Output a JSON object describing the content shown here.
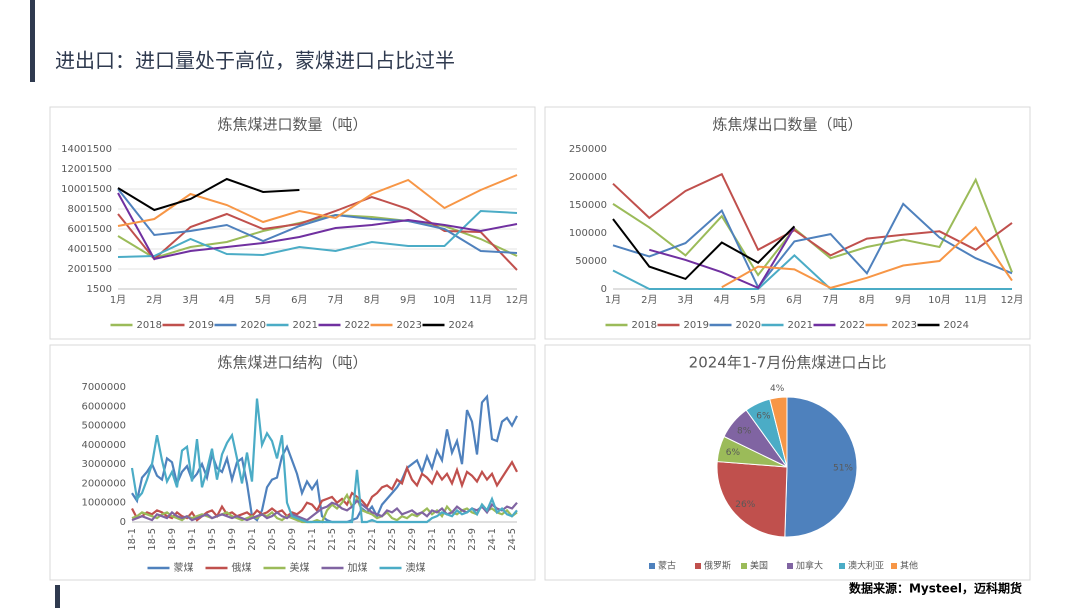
{
  "header": {
    "title": "进出口：进口量处于高位，蒙煤进口占比过半"
  },
  "source": "数据来源：Mysteel，迈科期货",
  "chart_data": [
    {
      "type": "line",
      "title": "炼焦煤进口数量（吨）",
      "grid": true,
      "categories": [
        "1月",
        "2月",
        "3月",
        "4月",
        "5月",
        "6月",
        "7月",
        "8月",
        "9月",
        "10月",
        "11月",
        "12月"
      ],
      "ylim": [
        1500,
        14001500
      ],
      "yticks": [
        1500,
        2001500,
        4001500,
        6001500,
        8001500,
        10001500,
        12001500,
        14001500
      ],
      "series": [
        {
          "name": "2018",
          "color": "#9bbb59",
          "values": [
            5300000,
            3100000,
            4200000,
            4700000,
            5800000,
            6600000,
            7400000,
            7200000,
            6800000,
            6300000,
            5000000,
            3300000
          ]
        },
        {
          "name": "2019",
          "color": "#c0504d",
          "values": [
            7500000,
            3000000,
            6200000,
            7500000,
            6000000,
            6500000,
            7800000,
            9200000,
            8000000,
            5800000,
            5700000,
            1900000
          ]
        },
        {
          "name": "2020",
          "color": "#4f81bd",
          "values": [
            10000000,
            5400000,
            5800000,
            6400000,
            4800000,
            6300000,
            7400000,
            7000000,
            6800000,
            6000000,
            3800000,
            3600000
          ]
        },
        {
          "name": "2021",
          "color": "#4bacc6",
          "values": [
            3200000,
            3300000,
            5000000,
            3500000,
            3400000,
            4200000,
            3800000,
            4700000,
            4300000,
            4300000,
            7800000,
            7600000
          ]
        },
        {
          "name": "2022",
          "color": "#7030a0",
          "values": [
            9600000,
            3000000,
            3800000,
            4200000,
            4600000,
            5200000,
            6100000,
            6400000,
            6900000,
            6400000,
            5800000,
            6500000
          ]
        },
        {
          "name": "2023",
          "color": "#f79646",
          "values": [
            6300000,
            7000000,
            9500000,
            8400000,
            6700000,
            7800000,
            7100000,
            9500000,
            10900000,
            8100000,
            9900000,
            11400000
          ]
        },
        {
          "name": "2024",
          "color": "#000000",
          "values": [
            10100000,
            7900000,
            9000000,
            11000000,
            9700000,
            9900000,
            null,
            null,
            null,
            null,
            null,
            null
          ]
        }
      ]
    },
    {
      "type": "line",
      "title": "炼焦煤出口数量（吨）",
      "grid": false,
      "categories": [
        "1月",
        "2月",
        "3月",
        "4月",
        "5月",
        "6月",
        "7月",
        "8月",
        "9月",
        "10月",
        "11月",
        "12月"
      ],
      "ylim": [
        0,
        250000
      ],
      "yticks": [
        0,
        50000,
        100000,
        150000,
        200000,
        250000
      ],
      "series": [
        {
          "name": "2018",
          "color": "#9bbb59",
          "values": [
            152000,
            110000,
            60000,
            130000,
            25000,
            108000,
            55000,
            75000,
            88000,
            75000,
            195000,
            30000
          ]
        },
        {
          "name": "2019",
          "color": "#c0504d",
          "values": [
            188000,
            127000,
            175000,
            205000,
            70000,
            105000,
            60000,
            90000,
            97000,
            103000,
            70000,
            118000
          ]
        },
        {
          "name": "2020",
          "color": "#4f81bd",
          "values": [
            78000,
            58000,
            82000,
            140000,
            3000,
            85000,
            98000,
            28000,
            152000,
            92000,
            55000,
            28000
          ]
        },
        {
          "name": "2021",
          "color": "#4bacc6",
          "values": [
            33000,
            0,
            0,
            0,
            0,
            60000,
            0,
            0,
            0,
            0,
            0,
            0
          ]
        },
        {
          "name": "2022",
          "color": "#7030a0",
          "values": [
            null,
            70000,
            52000,
            30000,
            2000,
            110000,
            null,
            null,
            null,
            null,
            null,
            null
          ]
        },
        {
          "name": "2023",
          "color": "#f79646",
          "values": [
            null,
            null,
            null,
            3000,
            40000,
            35000,
            2000,
            20000,
            42000,
            50000,
            110000,
            15000
          ]
        },
        {
          "name": "2024",
          "color": "#000000",
          "values": [
            125000,
            40000,
            18000,
            83000,
            47000,
            112000,
            null,
            null,
            null,
            null,
            null,
            null
          ]
        }
      ]
    },
    {
      "type": "line",
      "title": "炼焦煤进口结构（吨）",
      "grid": false,
      "rotate_labels": true,
      "categories": [
        "18-1",
        null,
        null,
        null,
        "18-5",
        null,
        null,
        null,
        "18-9",
        null,
        null,
        null,
        "19-1",
        null,
        null,
        null,
        "19-5",
        null,
        null,
        null,
        "19-9",
        null,
        null,
        null,
        "20-1",
        null,
        null,
        null,
        "20-5",
        null,
        null,
        null,
        "20-9",
        null,
        null,
        null,
        "21-1",
        null,
        null,
        null,
        "21-5",
        null,
        null,
        null,
        "21-9",
        null,
        null,
        null,
        "22-1",
        null,
        null,
        null,
        "22-5",
        null,
        null,
        null,
        "22-9",
        null,
        null,
        null,
        "23-1",
        null,
        null,
        null,
        "23-5",
        null,
        null,
        null,
        "23-9",
        null,
        null,
        null,
        "24-1",
        null,
        null,
        null,
        "24-5",
        null
      ],
      "ylim": [
        0,
        7000000
      ],
      "yticks": [
        0,
        1000000,
        2000000,
        3000000,
        4000000,
        5000000,
        6000000,
        7000000
      ],
      "series": [
        {
          "name": "蒙煤",
          "color": "#4f81bd",
          "values": [
            1500000,
            1100000,
            2300000,
            2600000,
            3000000,
            2400000,
            2200000,
            3300000,
            3100000,
            2000000,
            2600000,
            2900000,
            2200000,
            2500000,
            3000000,
            2300000,
            3500000,
            2800000,
            2600000,
            3300000,
            2200000,
            3100000,
            3300000,
            2000000,
            300000,
            100000,
            600000,
            1800000,
            2200000,
            2300000,
            3400000,
            3900000,
            3200000,
            2500000,
            1500000,
            2100000,
            1700000,
            2100000,
            300000,
            100000,
            0,
            0,
            0,
            0,
            100000,
            200000,
            700000,
            500000,
            800000,
            300000,
            900000,
            1200000,
            1500000,
            1800000,
            2200000,
            2800000,
            3000000,
            3200000,
            2600000,
            3400000,
            2800000,
            3700000,
            3200000,
            4800000,
            3600000,
            4200000,
            3000000,
            5800000,
            5200000,
            3500000,
            6200000,
            6500000,
            4300000,
            4200000,
            5200000,
            5400000,
            5000000,
            5500000
          ]
        },
        {
          "name": "俄煤",
          "color": "#c0504d",
          "values": [
            700000,
            200000,
            300000,
            500000,
            400000,
            600000,
            500000,
            300000,
            200000,
            500000,
            300000,
            200000,
            500000,
            100000,
            300000,
            500000,
            600000,
            300000,
            800000,
            400000,
            500000,
            300000,
            400000,
            500000,
            300000,
            600000,
            400000,
            500000,
            700000,
            500000,
            600000,
            300000,
            500000,
            400000,
            600000,
            1000000,
            900000,
            600000,
            1100000,
            1200000,
            1300000,
            1000000,
            1200000,
            900000,
            1500000,
            1300000,
            1100000,
            800000,
            1300000,
            1500000,
            1800000,
            1900000,
            1700000,
            2200000,
            2000000,
            2800000,
            2200000,
            1900000,
            2500000,
            2300000,
            2000000,
            2600000,
            2200000,
            2500000,
            2000000,
            2700000,
            1900000,
            2600000,
            2400000,
            2100000,
            2600000,
            2200000,
            2500000,
            1900000,
            2300000,
            2700000,
            3100000,
            2600000
          ]
        },
        {
          "name": "美煤",
          "color": "#9bbb59",
          "values": [
            200000,
            300000,
            500000,
            400000,
            300000,
            200000,
            400000,
            500000,
            300000,
            200000,
            100000,
            300000,
            200000,
            300000,
            400000,
            300000,
            200000,
            300000,
            400000,
            500000,
            300000,
            200000,
            100000,
            200000,
            300000,
            200000,
            400000,
            300000,
            500000,
            200000,
            100000,
            300000,
            200000,
            100000,
            0,
            0,
            0,
            100000,
            0,
            600000,
            900000,
            700000,
            1000000,
            1400000,
            800000,
            1200000,
            600000,
            500000,
            400000,
            200000,
            300000,
            500000,
            200000,
            100000,
            300000,
            200000,
            400000,
            300000,
            500000,
            700000,
            400000,
            600000,
            300000,
            800000,
            500000,
            400000,
            600000,
            700000,
            500000,
            400000,
            900000,
            600000,
            700000,
            500000,
            400000,
            600000,
            300000,
            500000
          ]
        },
        {
          "name": "加煤",
          "color": "#8064a2",
          "values": [
            100000,
            200000,
            300000,
            200000,
            100000,
            400000,
            300000,
            200000,
            500000,
            300000,
            200000,
            300000,
            100000,
            200000,
            300000,
            400000,
            200000,
            300000,
            400000,
            300000,
            200000,
            300000,
            200000,
            100000,
            200000,
            300000,
            400000,
            200000,
            300000,
            500000,
            300000,
            200000,
            400000,
            300000,
            200000,
            100000,
            300000,
            500000,
            700000,
            800000,
            1000000,
            900000,
            700000,
            600000,
            800000,
            1100000,
            900000,
            700000,
            500000,
            400000,
            300000,
            600000,
            500000,
            700000,
            400000,
            500000,
            600000,
            400000,
            500000,
            300000,
            600000,
            500000,
            700000,
            400000,
            500000,
            800000,
            600000,
            500000,
            700000,
            600000,
            800000,
            500000,
            900000,
            700000,
            600000,
            800000,
            700000,
            1000000
          ]
        },
        {
          "name": "澳煤",
          "color": "#4bacc6",
          "values": [
            2800000,
            1200000,
            1500000,
            2200000,
            3000000,
            4500000,
            3200000,
            2100000,
            2600000,
            1800000,
            3700000,
            3900000,
            2100000,
            4300000,
            1800000,
            2700000,
            3800000,
            2200000,
            3500000,
            4100000,
            4500000,
            3300000,
            2000000,
            3600000,
            2100000,
            6400000,
            4000000,
            4600000,
            4200000,
            3300000,
            4500000,
            1000000,
            300000,
            200000,
            100000,
            0,
            0,
            0,
            0,
            0,
            0,
            0,
            0,
            0,
            0,
            2700000,
            0,
            0,
            100000,
            0,
            0,
            0,
            0,
            0,
            0,
            0,
            0,
            0,
            0,
            0,
            200000,
            300000,
            500000,
            400000,
            300000,
            600000,
            400000,
            500000,
            700000,
            400000,
            900000,
            600000,
            1200000,
            500000,
            700000,
            400000,
            300000,
            600000
          ]
        }
      ]
    },
    {
      "type": "pie",
      "title": "2024年1-7月份焦煤进口占比",
      "categories": [
        "蒙古",
        "俄罗斯",
        "美国",
        "加拿大",
        "澳大利亚",
        "其他"
      ],
      "values": [
        51,
        26,
        6,
        8,
        6,
        4
      ],
      "value_labels": [
        "51%",
        "26%",
        "6%",
        "8%",
        "6%",
        "4%"
      ],
      "colors": [
        "#4e81bd",
        "#c0504d",
        "#9bbb59",
        "#8064a2",
        "#4bacc6",
        "#f79646"
      ]
    }
  ]
}
